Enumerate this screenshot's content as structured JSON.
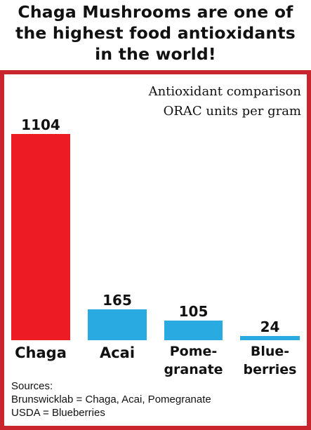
{
  "headline": {
    "lines": [
      "Chaga Mushrooms are one of",
      "the highest food antioxidants",
      "in the world!"
    ]
  },
  "colors": {
    "frame": "#c8262c",
    "chaga_bar": "#ed1c24",
    "other_bars": "#29abe2"
  },
  "chart_data": {
    "type": "bar",
    "title": "Antioxidant comparison",
    "subtitle": "ORAC units per gram",
    "categories": [
      "Chaga",
      "Acai",
      "Pomegranate",
      "Blueberries"
    ],
    "category_display": [
      [
        "Chaga"
      ],
      [
        "Acai"
      ],
      [
        "Pome-",
        "granate"
      ],
      [
        "Blue-",
        "berries"
      ]
    ],
    "values": [
      1104,
      165,
      105,
      24
    ],
    "bar_colors": [
      "#ed1c24",
      "#29abe2",
      "#29abe2",
      "#29abe2"
    ],
    "ylim": [
      0,
      1104
    ],
    "grid": false,
    "legend": "none"
  },
  "sources": {
    "heading": "Sources:",
    "lines": [
      "Brunswicklab = Chaga, Acai, Pomegranate",
      "USDA = Blueberries"
    ]
  }
}
